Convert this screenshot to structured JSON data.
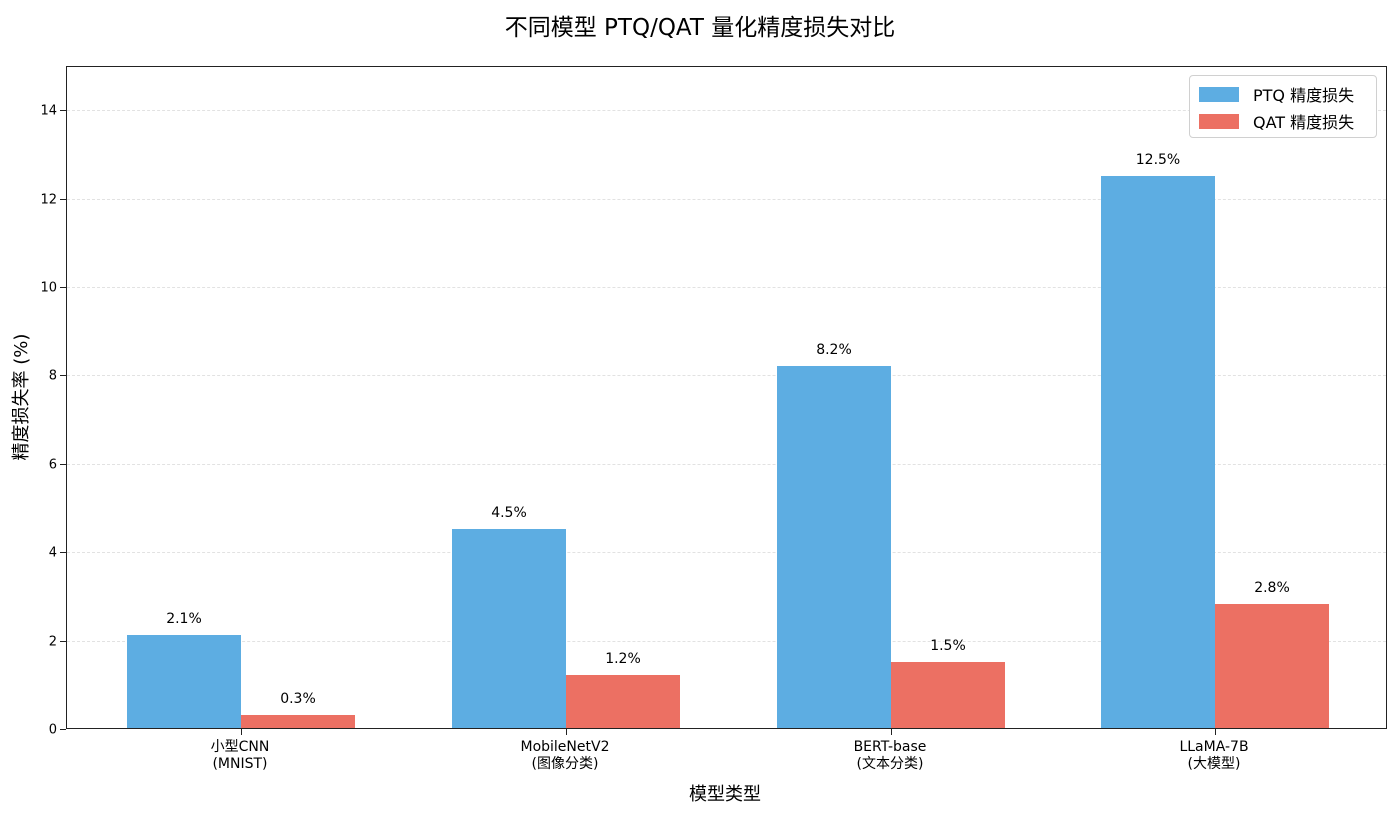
{
  "chart_data": {
    "type": "bar",
    "title": "不同模型 PTQ/QAT 量化精度损失对比",
    "xlabel": "模型类型",
    "ylabel": "精度损失率 (%)",
    "categories": [
      "小型CNN\n(MNIST)",
      "MobileNetV2\n(图像分类)",
      "BERT-base\n(文本分类)",
      "LLaMA-7B\n(大模型)"
    ],
    "category_lines": [
      [
        "小型CNN",
        "(MNIST)"
      ],
      [
        "MobileNetV2",
        "(图像分类)"
      ],
      [
        "BERT-base",
        "(文本分类)"
      ],
      [
        "LLaMA-7B",
        "(大模型)"
      ]
    ],
    "series": [
      {
        "name": "PTQ 精度损失",
        "color": "#5DADE2",
        "values": [
          2.1,
          4.5,
          8.2,
          12.5
        ],
        "labels": [
          "2.1%",
          "4.5%",
          "8.2%",
          "12.5%"
        ]
      },
      {
        "name": "QAT 精度损失",
        "color": "#EC7063",
        "values": [
          0.3,
          1.2,
          1.5,
          2.8
        ],
        "labels": [
          "0.3%",
          "1.2%",
          "1.5%",
          "2.8%"
        ]
      }
    ],
    "ylim": [
      0,
      15
    ],
    "yticks": [
      0,
      2,
      4,
      6,
      8,
      10,
      12,
      14
    ],
    "grid": "y dashed",
    "legend_position": "upper right"
  }
}
